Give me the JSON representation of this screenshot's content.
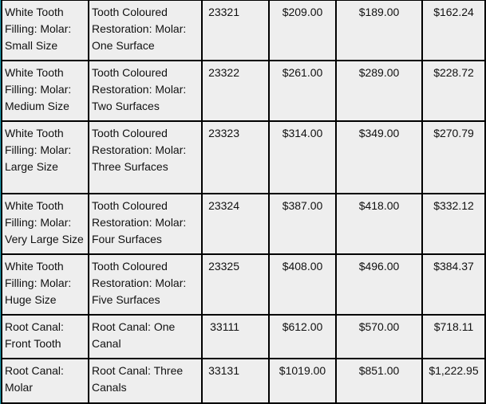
{
  "rows": [
    {
      "name": "White Tooth Filling: Molar: Small Size",
      "desc": "Tooth Coloured Restoration: Molar: One Surface",
      "code": "23321",
      "price1": "$209.00",
      "price2": "$189.00",
      "price3": "$162.24"
    },
    {
      "name": "White Tooth Filling: Molar: Medium Size",
      "desc": "Tooth Coloured Restoration: Molar: Two Surfaces",
      "code": "23322",
      "price1": "$261.00",
      "price2": "$289.00",
      "price3": "$228.72"
    },
    {
      "name": "White Tooth Filling: Molar: Large Size",
      "desc": "Tooth Coloured Restoration: Molar: Three  Surfaces",
      "code": "23323",
      "price1": "$314.00",
      "price2": "$349.00",
      "price3": "$270.79"
    },
    {
      "name": "White Tooth Filling: Molar: Very Large Size",
      "desc": "Tooth Coloured Restoration: Molar: Four Surfaces",
      "code": "23324",
      "price1": "$387.00",
      "price2": "$418.00",
      "price3": "$332.12"
    },
    {
      "name": "White Tooth Filling: Molar: Huge Size",
      "desc": "Tooth Coloured Restoration: Molar: Five Surfaces",
      "code": "23325",
      "price1": "$408.00",
      "price2": "$496.00",
      "price3": "$384.37"
    },
    {
      "name": "Root Canal: Front Tooth",
      "desc": "Root Canal: One Canal",
      "code": "33111",
      "price1": "$612.00",
      "price2": "$570.00",
      "price3": "$718.11"
    },
    {
      "name": "Root Canal: Molar",
      "desc": "Root Canal: Three Canals",
      "code": "33131",
      "price1": "$1019.00",
      "price2": "$851.00",
      "price3": "$1,222.95"
    }
  ]
}
